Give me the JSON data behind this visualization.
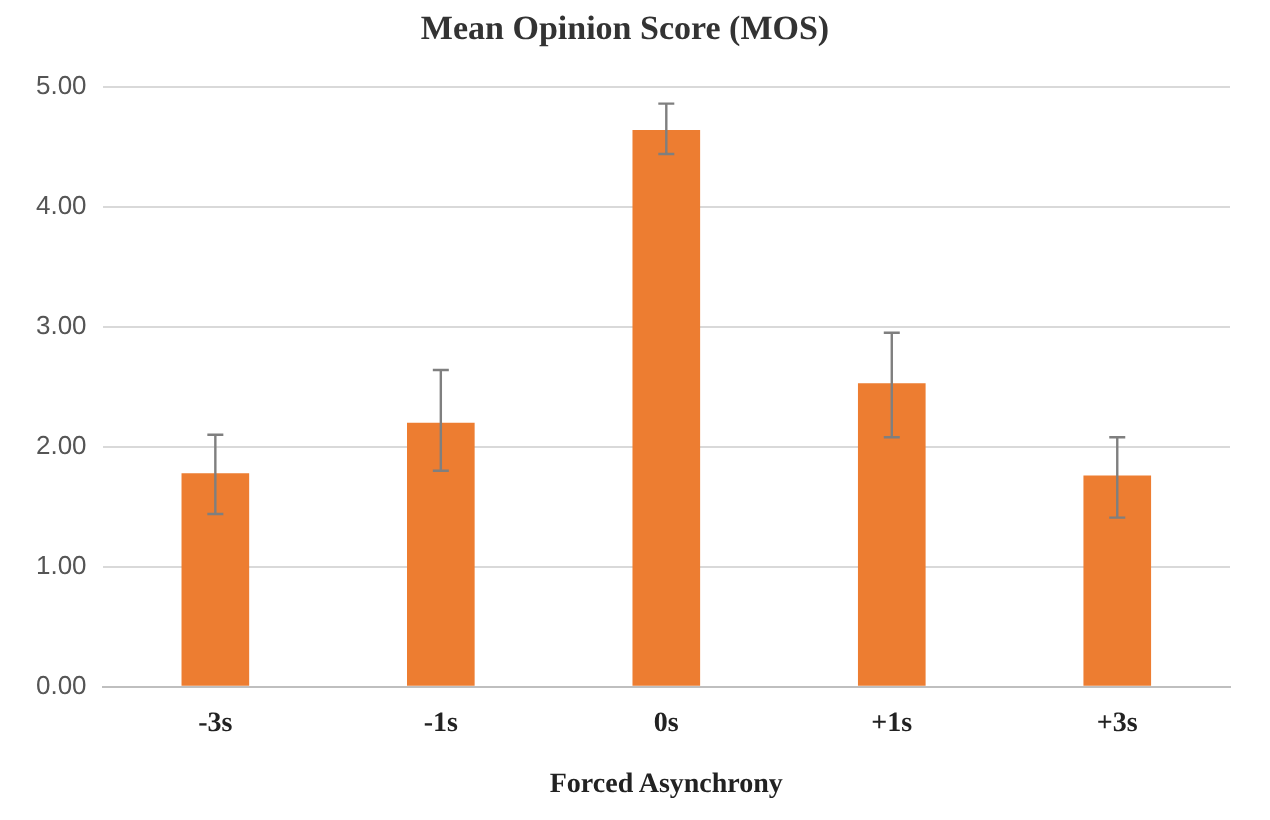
{
  "chart_data": {
    "type": "bar",
    "title": "Mean Opinion Score (MOS)",
    "xlabel": "Forced Asynchrony",
    "categories": [
      "-3s",
      "-1s",
      "0s",
      "+1s",
      "+3s"
    ],
    "values": [
      1.78,
      2.2,
      4.64,
      2.53,
      1.76
    ],
    "errors": [
      [
        1.44,
        2.1
      ],
      [
        1.8,
        2.64
      ],
      [
        4.44,
        4.86
      ],
      [
        2.08,
        2.95
      ],
      [
        1.41,
        2.08
      ]
    ],
    "color": "#ed7d31",
    "ylim": [
      0,
      5
    ],
    "yticks": [
      {
        "value": 0,
        "label": "0.00"
      },
      {
        "value": 1,
        "label": "1.00"
      },
      {
        "value": 2,
        "label": "2.00"
      },
      {
        "value": 3,
        "label": "3.00"
      },
      {
        "value": 4,
        "label": "4.00"
      },
      {
        "value": 5,
        "label": "5.00"
      }
    ],
    "grid": "y"
  }
}
